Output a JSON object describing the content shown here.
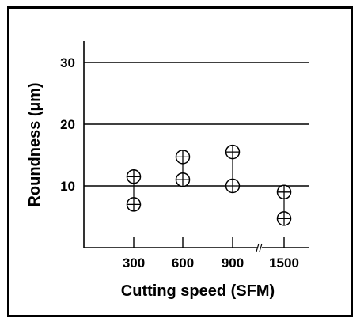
{
  "chart_data": {
    "type": "scatter",
    "xlabel": "Cutting speed (SFM)",
    "ylabel": "Roundness (µm)",
    "categories": [
      "300",
      "600",
      "900",
      "1500"
    ],
    "y_ticks": [
      "10",
      "20",
      "30"
    ],
    "ylim": [
      0,
      34
    ],
    "grid": "horizontal lines at 10, 20, 30",
    "axis_break": "between 900 and 1500",
    "points": [
      {
        "category": "300",
        "min": 7,
        "max": 11.5
      },
      {
        "category": "600",
        "min": 11,
        "max": 14.7
      },
      {
        "category": "900",
        "min": 10,
        "max": 15.5
      },
      {
        "category": "1500",
        "min": 4.7,
        "max": 9
      }
    ],
    "marker": "circle-with-cross",
    "color": "#000000"
  }
}
